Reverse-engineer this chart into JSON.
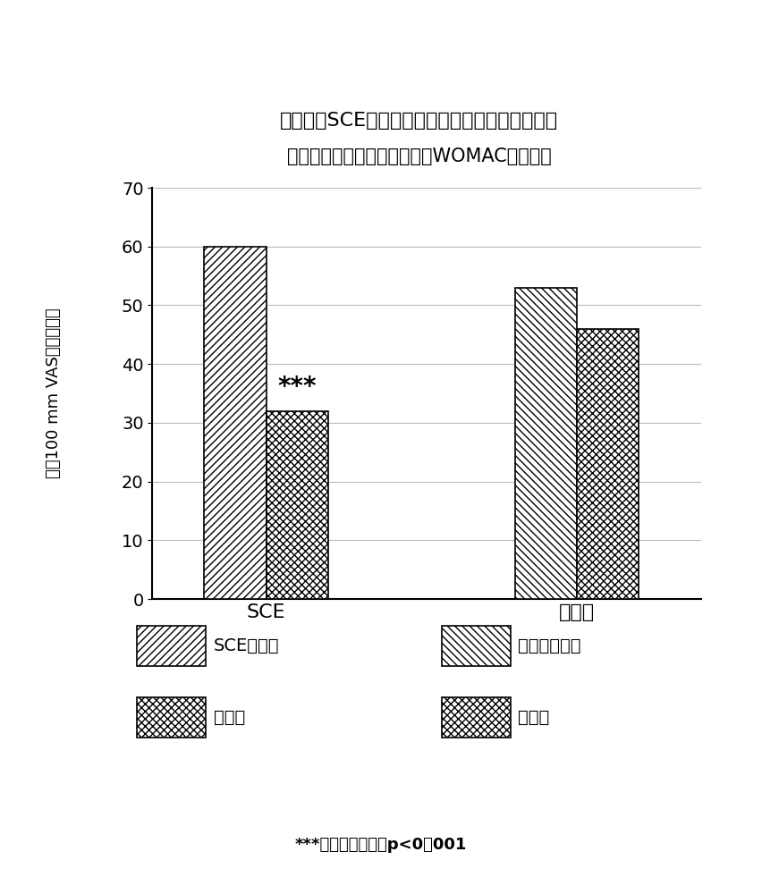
{
  "title_line1": "局部施用SCE乳剂对骨关节炎相关性疼痛的作用。",
  "title_line2": "一个选定（指标）膝盖的自评WOMAC疼痛评分",
  "ylabel_chars": [
    "使",
    "用",
    "1",
    "0",
    "0",
    " ",
    "m",
    "m",
    " ",
    "V",
    "A",
    "S",
    "的",
    "疼",
    "痛",
    "评",
    "分"
  ],
  "xlabel_groups": [
    "SCE",
    "安慰剂"
  ],
  "bar_values": [
    60,
    32,
    53,
    46
  ],
  "ylim": [
    0,
    70
  ],
  "yticks": [
    0,
    10,
    20,
    30,
    40,
    50,
    60,
    70
  ],
  "annotation_text": "***",
  "footnote": "***与基线组值相比p<0．001",
  "legend_labels": [
    "SCE组基线",
    "干预后",
    "安慰剂组基线",
    "干预后"
  ],
  "background_color": "#ffffff",
  "bar_edge_color": "#000000",
  "bar_facecolor": "#ffffff",
  "grid_color": "#bbbbbb"
}
